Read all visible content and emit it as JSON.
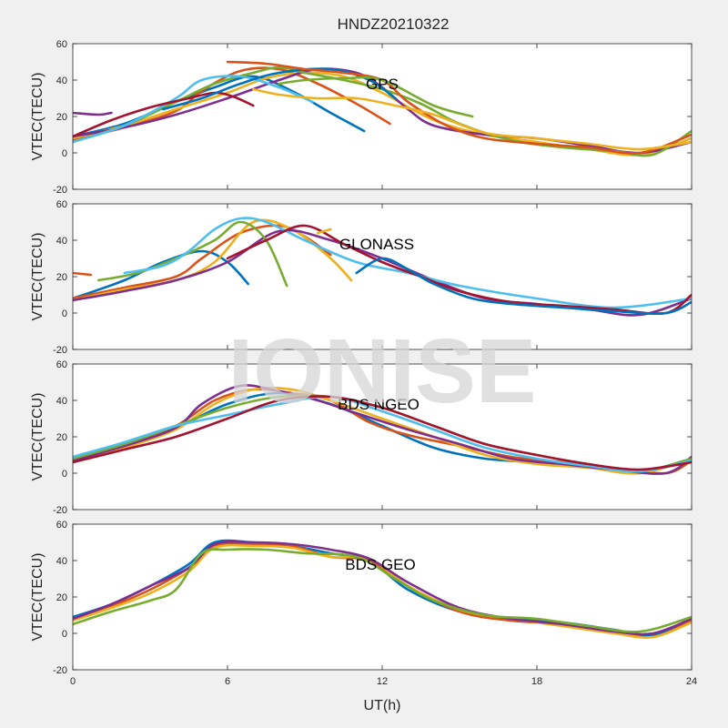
{
  "figure": {
    "title": "HNDZ20210322",
    "xlabel": "UT(h)",
    "watermark": "IONISE",
    "xlim": [
      0,
      24
    ],
    "xticks": [
      "0",
      "6",
      "12",
      "18",
      "24"
    ],
    "colors": [
      "#0072BD",
      "#D95319",
      "#EDB120",
      "#7E2F8E",
      "#77AC30",
      "#4DBEEE",
      "#A2142F"
    ]
  },
  "chart_data": [
    {
      "type": "line",
      "label": "GPS",
      "ylabel": "VTEC(TECU)",
      "ylim": [
        -20,
        60
      ],
      "yticks": [
        "60",
        "40",
        "20",
        "0",
        "-20"
      ],
      "grid": false,
      "series": [
        {
          "x": [
            0,
            2,
            4,
            5.5,
            7,
            8.5,
            10,
            11.3
          ],
          "y": [
            9,
            16,
            28,
            36,
            42,
            34,
            22,
            12
          ]
        },
        {
          "x": [
            0,
            2,
            4,
            5,
            6.5,
            8,
            9.5,
            11,
            12.3
          ],
          "y": [
            7,
            14,
            23,
            34,
            45,
            46,
            38,
            27,
            16
          ]
        },
        {
          "x": [
            0,
            2,
            4,
            6,
            7.5,
            9,
            10.5,
            12,
            14,
            16,
            18,
            20,
            22,
            24
          ],
          "y": [
            8,
            15,
            24,
            33,
            41,
            44,
            42,
            33,
            18,
            10,
            6,
            2,
            -1,
            8
          ]
        },
        {
          "x": [
            0,
            2,
            4,
            6,
            8,
            9.5,
            11,
            12,
            13,
            14,
            16,
            18,
            20,
            22,
            24
          ],
          "y": [
            9,
            14,
            21,
            30,
            40,
            46,
            44,
            36,
            24,
            15,
            10,
            8,
            4,
            0,
            6
          ]
        },
        {
          "x": [
            0,
            2,
            4,
            5.5,
            7,
            8,
            9,
            10.5,
            12,
            13.5,
            15,
            17,
            19,
            21,
            22.5,
            24
          ],
          "y": [
            6,
            15,
            28,
            38,
            44,
            47,
            44,
            40,
            35,
            27,
            16,
            7,
            3,
            1,
            -1,
            12
          ]
        },
        {
          "x": [
            0,
            2,
            4,
            5,
            6.5,
            8,
            9.3
          ],
          "y": [
            6,
            15,
            30,
            40,
            42,
            36,
            28
          ]
        },
        {
          "x": [
            0,
            1.5,
            3,
            4.5,
            5.5,
            6.2,
            7
          ],
          "y": [
            9,
            18,
            25,
            30,
            33,
            31,
            26
          ]
        },
        {
          "x": [
            3.5,
            5,
            6.5,
            8,
            10,
            11.5,
            12.5
          ],
          "y": [
            24,
            30,
            38,
            44,
            46,
            40,
            30
          ]
        },
        {
          "x": [
            6,
            7.5,
            9,
            10.5,
            12,
            13,
            14.5,
            16,
            18,
            20,
            22,
            24
          ],
          "y": [
            50,
            49,
            46,
            44,
            40,
            28,
            15,
            8,
            5,
            3,
            0,
            10
          ]
        },
        {
          "x": [
            7,
            8,
            9.5,
            11,
            12.5,
            14,
            16,
            18,
            20,
            22,
            24
          ],
          "y": [
            35,
            32,
            30,
            30,
            26,
            21,
            11,
            8,
            5,
            2,
            6
          ]
        },
        {
          "x": [
            0,
            1,
            1.5
          ],
          "y": [
            22,
            21,
            22
          ]
        },
        {
          "x": [
            8,
            9,
            10.5,
            12,
            14,
            15.5
          ],
          "y": [
            38,
            40,
            41,
            40,
            26,
            20
          ]
        }
      ]
    },
    {
      "type": "line",
      "label": "GLONASS",
      "ylabel": "VTEC(TECU)",
      "ylim": [
        -20,
        60
      ],
      "yticks": [
        "60",
        "40",
        "20",
        "0",
        "-20"
      ],
      "grid": false,
      "series": [
        {
          "x": [
            0,
            2,
            3.5,
            5,
            6,
            6.8
          ],
          "y": [
            8,
            18,
            28,
            34,
            28,
            16
          ]
        },
        {
          "x": [
            0,
            2,
            4,
            5,
            6.5,
            8,
            9,
            10
          ],
          "y": [
            8,
            14,
            20,
            30,
            44,
            48,
            42,
            32
          ]
        },
        {
          "x": [
            0,
            2,
            4,
            5.5,
            7,
            8.5,
            10,
            10.8
          ],
          "y": [
            7,
            13,
            18,
            28,
            50,
            46,
            30,
            18
          ]
        },
        {
          "x": [
            0,
            2,
            4,
            6,
            8,
            10,
            12,
            14,
            16,
            18,
            20,
            22,
            24
          ],
          "y": [
            7,
            12,
            18,
            28,
            45,
            40,
            30,
            18,
            8,
            5,
            2,
            -1,
            8
          ]
        },
        {
          "x": [
            1,
            2.5,
            4,
            5.5,
            6.5,
            7.5,
            8.3
          ],
          "y": [
            18,
            22,
            30,
            40,
            50,
            40,
            15
          ]
        },
        {
          "x": [
            2,
            3.5,
            4.5,
            5.5,
            6.5,
            7.5,
            9,
            11,
            13,
            15,
            18,
            21,
            24
          ],
          "y": [
            22,
            26,
            34,
            46,
            52,
            50,
            40,
            28,
            22,
            15,
            8,
            3,
            8
          ]
        },
        {
          "x": [
            6,
            7.5,
            9,
            10.5,
            12,
            13.5,
            15,
            17,
            19,
            21,
            23,
            24
          ],
          "y": [
            30,
            40,
            48,
            38,
            28,
            20,
            12,
            6,
            4,
            2,
            0,
            10
          ]
        },
        {
          "x": [
            11,
            12,
            13,
            14,
            15.5,
            17,
            19,
            21,
            23,
            24
          ],
          "y": [
            22,
            30,
            24,
            16,
            8,
            5,
            3,
            1,
            0,
            6
          ]
        },
        {
          "x": [
            0,
            0.7
          ],
          "y": [
            22,
            21
          ]
        },
        {
          "x": [
            9.5,
            10
          ],
          "y": [
            44,
            46
          ]
        }
      ]
    },
    {
      "type": "line",
      "label": "BDS NGEO",
      "ylabel": "VTEC(TECU)",
      "ylim": [
        -20,
        60
      ],
      "yticks": [
        "60",
        "40",
        "20",
        "0",
        "-20"
      ],
      "grid": false,
      "series": [
        {
          "x": [
            0,
            2,
            4,
            6,
            8,
            10,
            12,
            14,
            16,
            18,
            20,
            22,
            24
          ],
          "y": [
            8,
            16,
            25,
            38,
            44,
            38,
            26,
            14,
            8,
            6,
            4,
            1,
            8
          ]
        },
        {
          "x": [
            0,
            2,
            4,
            5.5,
            7,
            8.5,
            10,
            11.5,
            13,
            15,
            17,
            19,
            21,
            23,
            24
          ],
          "y": [
            7,
            15,
            26,
            40,
            46,
            44,
            40,
            28,
            21,
            15,
            9,
            6,
            3,
            0,
            7
          ]
        },
        {
          "x": [
            0,
            2,
            4,
            5.5,
            7,
            8.5,
            10,
            12,
            14,
            16,
            18,
            20,
            22,
            24
          ],
          "y": [
            6,
            14,
            24,
            38,
            46,
            46,
            40,
            30,
            20,
            10,
            5,
            3,
            0,
            8
          ]
        },
        {
          "x": [
            0,
            2,
            4,
            5,
            6.5,
            8,
            9.5,
            11,
            13,
            15,
            17,
            19,
            21,
            23,
            24
          ],
          "y": [
            7,
            15,
            25,
            38,
            48,
            45,
            40,
            33,
            24,
            16,
            8,
            5,
            2,
            0,
            9
          ]
        },
        {
          "x": [
            0,
            2,
            4,
            6,
            8,
            10,
            12,
            14,
            16,
            18,
            20,
            22,
            24
          ],
          "y": [
            8,
            16,
            26,
            36,
            42,
            42,
            36,
            26,
            16,
            10,
            5,
            1,
            8
          ]
        },
        {
          "x": [
            0,
            2,
            4,
            6,
            8,
            10,
            12,
            14,
            16,
            18,
            20,
            22,
            24
          ],
          "y": [
            9,
            17,
            26,
            32,
            38,
            42,
            34,
            24,
            14,
            8,
            4,
            1,
            7
          ]
        },
        {
          "x": [
            0,
            2,
            4,
            6,
            8,
            10,
            12,
            14,
            16,
            18,
            20,
            22,
            24
          ],
          "y": [
            6,
            13,
            20,
            30,
            40,
            42,
            36,
            26,
            16,
            10,
            5,
            2,
            6
          ]
        }
      ]
    },
    {
      "type": "line",
      "label": "BDS GEO",
      "ylabel": "VTEC(TECU)",
      "ylim": [
        -20,
        60
      ],
      "yticks": [
        "60",
        "40",
        "20",
        "0",
        "-20"
      ],
      "grid": false,
      "series": [
        {
          "x": [
            0,
            1.5,
            3,
            4.5,
            5.5,
            7,
            8.5,
            10,
            11.5,
            13,
            15,
            17,
            19,
            21,
            22.5,
            24
          ],
          "y": [
            9,
            16,
            26,
            38,
            50,
            50,
            48,
            44,
            40,
            24,
            12,
            8,
            6,
            2,
            -1,
            8
          ]
        },
        {
          "x": [
            0,
            1.5,
            3,
            4.5,
            5.5,
            7,
            8.5,
            10,
            11.5,
            13,
            15,
            17,
            19,
            21,
            22.5,
            24
          ],
          "y": [
            8,
            15,
            24,
            36,
            48,
            49,
            48,
            42,
            40,
            26,
            12,
            7,
            5,
            1,
            -2,
            7
          ]
        },
        {
          "x": [
            0,
            1.5,
            3,
            4.5,
            5.5,
            7,
            8.5,
            10,
            11.5,
            13,
            15,
            17,
            19,
            21,
            22.5,
            24
          ],
          "y": [
            7,
            14,
            22,
            34,
            47,
            48,
            47,
            42,
            41,
            26,
            13,
            8,
            4,
            0,
            -2,
            6
          ]
        },
        {
          "x": [
            0,
            1.5,
            3,
            4.5,
            5.5,
            7,
            8.5,
            10,
            11.5,
            13,
            15,
            17,
            19,
            21,
            22.5,
            24
          ],
          "y": [
            8,
            16,
            26,
            36,
            49,
            50,
            49,
            46,
            41,
            28,
            14,
            8,
            5,
            1,
            0,
            8
          ]
        },
        {
          "x": [
            0,
            1.5,
            3,
            4,
            5,
            6,
            7.5,
            9,
            11,
            12.5,
            14,
            16,
            18,
            20,
            22,
            24
          ],
          "y": [
            5,
            12,
            18,
            24,
            44,
            46,
            46,
            44,
            42,
            30,
            18,
            10,
            8,
            4,
            1,
            9
          ]
        }
      ]
    }
  ]
}
